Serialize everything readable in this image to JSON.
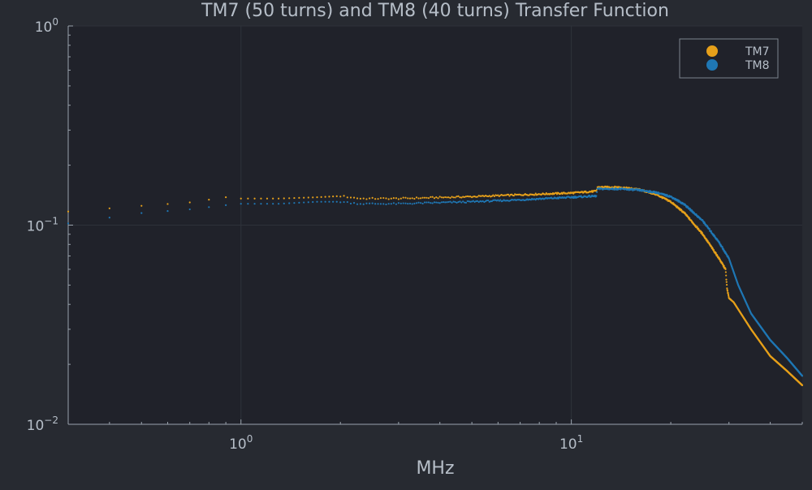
{
  "chart_data": {
    "type": "scatter",
    "title": "TM7 (50 turns) and TM8 (40 turns) Transfer Function",
    "xlabel": "MHz",
    "ylabel": "",
    "xscale": "log",
    "yscale": "log",
    "xlim": [
      0.3,
      50
    ],
    "ylim": [
      0.01,
      1
    ],
    "grid": true,
    "legend": {
      "placement": "top-right"
    },
    "x_ticks": [
      {
        "value": 1,
        "base": "10",
        "exp": "0"
      },
      {
        "value": 10,
        "base": "10",
        "exp": "1"
      }
    ],
    "y_ticks": [
      {
        "value": 0.01,
        "base": "10",
        "exp": "−2"
      },
      {
        "value": 0.1,
        "base": "10",
        "exp": "−1"
      },
      {
        "value": 1,
        "base": "10",
        "exp": "0"
      }
    ],
    "colors": {
      "page_bg": "#272a31",
      "plot_bg": "#20222a",
      "grid": "#2e323a",
      "axis": "#9aa3ad",
      "text": "#b6bec8",
      "legend_border": "#7c848e"
    },
    "series": [
      {
        "name": "TM7",
        "color": "#e6a01a",
        "anchors": [
          [
            0.3,
            0.117
          ],
          [
            0.5,
            0.125
          ],
          [
            0.7,
            0.13
          ],
          [
            0.9,
            0.138
          ],
          [
            1.0,
            0.136
          ],
          [
            1.3,
            0.136
          ],
          [
            1.7,
            0.138
          ],
          [
            2.0,
            0.14
          ],
          [
            2.3,
            0.136
          ],
          [
            3.0,
            0.136
          ],
          [
            5.0,
            0.139
          ],
          [
            7.0,
            0.142
          ],
          [
            10.0,
            0.145
          ],
          [
            11.9,
            0.148
          ],
          [
            12.0,
            0.155
          ],
          [
            14.0,
            0.155
          ],
          [
            16.0,
            0.151
          ],
          [
            18.0,
            0.143
          ],
          [
            20.0,
            0.131
          ],
          [
            22.0,
            0.115
          ],
          [
            25.0,
            0.09
          ],
          [
            28.0,
            0.068
          ],
          [
            29.3,
            0.06
          ],
          [
            29.6,
            0.048
          ],
          [
            30.0,
            0.043
          ],
          [
            31.0,
            0.041
          ],
          [
            35.0,
            0.03
          ],
          [
            40.0,
            0.022
          ],
          [
            45.0,
            0.0185
          ],
          [
            50.0,
            0.0157
          ]
        ]
      },
      {
        "name": "TM8",
        "color": "#1f77b4",
        "anchors": [
          [
            0.3,
            0.102
          ],
          [
            0.5,
            0.115
          ],
          [
            0.7,
            0.12
          ],
          [
            0.9,
            0.126
          ],
          [
            1.0,
            0.128
          ],
          [
            1.3,
            0.128
          ],
          [
            1.7,
            0.131
          ],
          [
            2.0,
            0.131
          ],
          [
            2.3,
            0.128
          ],
          [
            3.0,
            0.128
          ],
          [
            5.0,
            0.131
          ],
          [
            7.0,
            0.134
          ],
          [
            10.0,
            0.138
          ],
          [
            11.9,
            0.14
          ],
          [
            12.0,
            0.152
          ],
          [
            14.0,
            0.152
          ],
          [
            16.0,
            0.15
          ],
          [
            18.0,
            0.146
          ],
          [
            20.0,
            0.139
          ],
          [
            22.0,
            0.127
          ],
          [
            25.0,
            0.105
          ],
          [
            28.0,
            0.082
          ],
          [
            30.0,
            0.068
          ],
          [
            32.0,
            0.05
          ],
          [
            35.0,
            0.036
          ],
          [
            40.0,
            0.0265
          ],
          [
            45.0,
            0.0215
          ],
          [
            50.0,
            0.0175
          ]
        ]
      }
    ]
  }
}
